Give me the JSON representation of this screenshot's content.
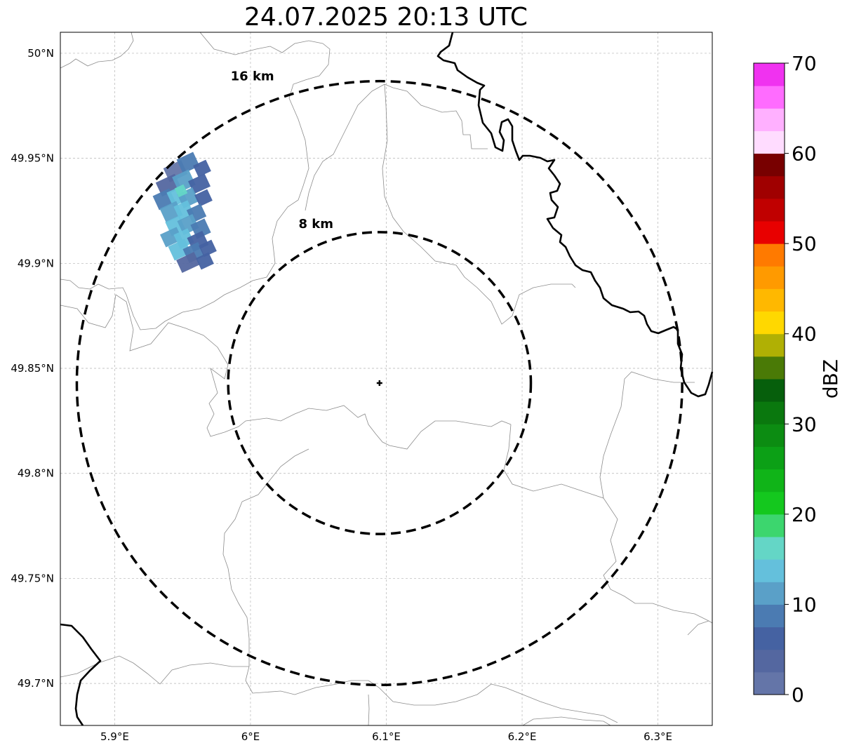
{
  "title": "24.07.2025 20:13 UTC",
  "map": {
    "lon_range": [
      5.86,
      6.34
    ],
    "lat_range": [
      49.68,
      50.01
    ],
    "lon_ticks": [
      {
        "value": 5.9,
        "label": "5.9°E"
      },
      {
        "value": 6.0,
        "label": "6°E"
      },
      {
        "value": 6.1,
        "label": "6.1°E"
      },
      {
        "value": 6.2,
        "label": "6.2°E"
      },
      {
        "value": 6.3,
        "label": "6.3°E"
      }
    ],
    "lat_ticks": [
      {
        "value": 49.7,
        "label": "49.7°N"
      },
      {
        "value": 49.75,
        "label": "49.75°N"
      },
      {
        "value": 49.8,
        "label": "49.8°N"
      },
      {
        "value": 49.85,
        "label": "49.85°N"
      },
      {
        "value": 49.9,
        "label": "49.9°N"
      },
      {
        "value": 49.95,
        "label": "49.95°N"
      },
      {
        "value": 50.0,
        "label": "50°N"
      }
    ],
    "gridlines": true,
    "radar_site": {
      "lon": 6.095,
      "lat": 49.843
    },
    "range_rings": [
      {
        "radius_km": 8,
        "label": "8 km"
      },
      {
        "radius_km": 16,
        "label": "16 km"
      }
    ]
  },
  "colorbar": {
    "label": "dBZ",
    "min": 0,
    "max": 70,
    "tick_values": [
      0,
      10,
      20,
      30,
      40,
      50,
      60,
      70
    ],
    "tick_labels": [
      "0",
      "10",
      "20",
      "30",
      "40",
      "50",
      "60",
      "70"
    ],
    "colors": [
      "#6475a8",
      "#5467a0",
      "#4562a2",
      "#4b7bb2",
      "#5aa0c8",
      "#64c0dc",
      "#64d6c6",
      "#3cd66e",
      "#14c81e",
      "#10b418",
      "#0ca016",
      "#0c8c12",
      "#0a780e",
      "#065f0c",
      "#4a7a06",
      "#b0b004",
      "#ffd800",
      "#ffb800",
      "#ff9a00",
      "#ff7a00",
      "#e80000",
      "#c00000",
      "#a00000",
      "#780000",
      "#ffdcff",
      "#ffb0ff",
      "#ff6cff",
      "#f032f0"
    ]
  },
  "colors": {
    "border": "#000000",
    "admin": "#8c8c8c",
    "grid": "#b4b4b4"
  }
}
